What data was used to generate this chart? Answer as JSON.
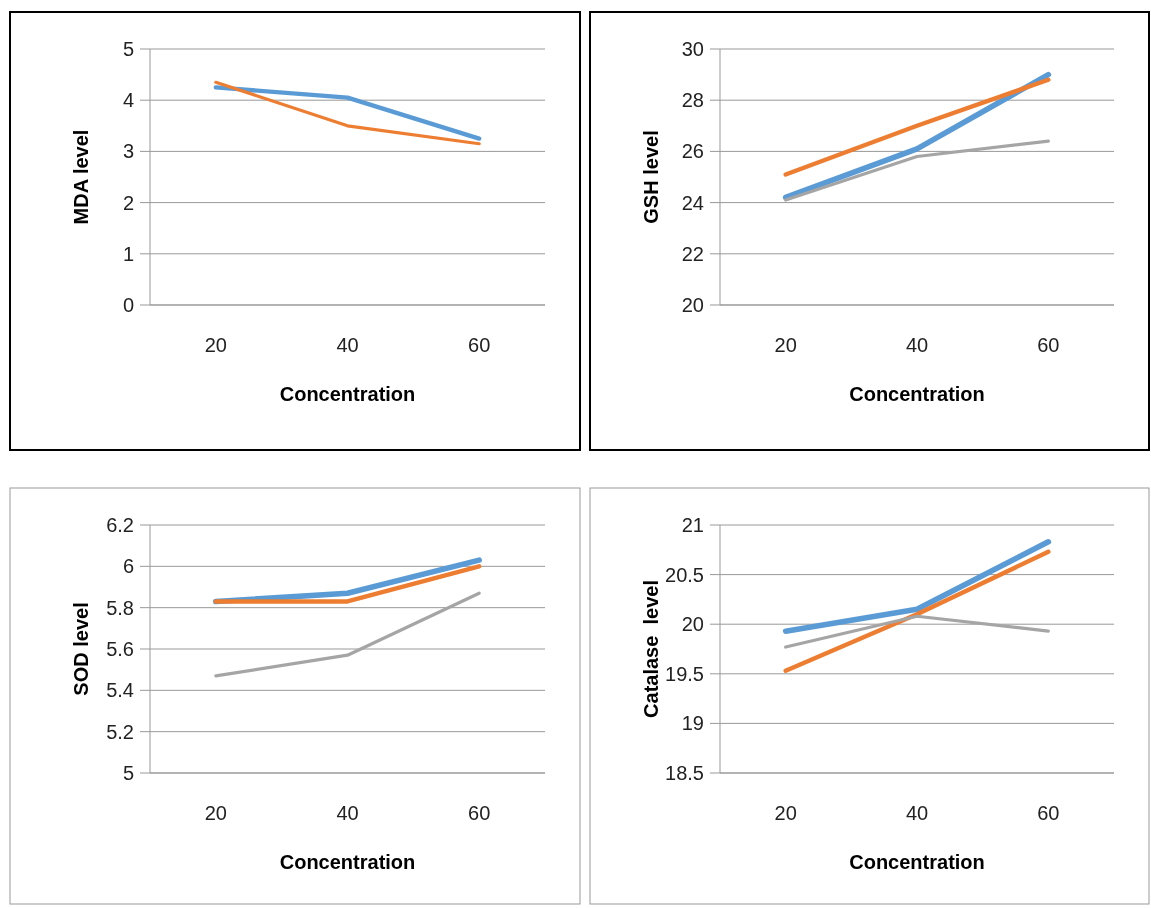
{
  "chart_data": [
    {
      "type": "line",
      "categories": [
        "20",
        "40",
        "60"
      ],
      "xlabel": "Concentration",
      "ylabel": "MDA level",
      "ylim": [
        0,
        5
      ],
      "yticks": [
        0,
        1,
        2,
        3,
        4,
        5
      ],
      "grid": "y",
      "series": [
        {
          "color": "#5b9bd5",
          "values": [
            4.25,
            4.05,
            3.25
          ]
        },
        {
          "color": "#ed7d31",
          "values": [
            4.35,
            3.5,
            3.15
          ]
        }
      ]
    },
    {
      "type": "line",
      "categories": [
        "20",
        "40",
        "60"
      ],
      "xlabel": "Concentration",
      "ylabel": "GSH level",
      "ylim": [
        20,
        30
      ],
      "yticks": [
        20,
        22,
        24,
        26,
        28,
        30
      ],
      "grid": "y",
      "series": [
        {
          "color": "#5b9bd5",
          "values": [
            24.2,
            26.1,
            29.0
          ]
        },
        {
          "color": "#ed7d31",
          "values": [
            25.1,
            27.0,
            28.8
          ]
        },
        {
          "color": "#a5a5a5",
          "values": [
            24.1,
            25.8,
            26.4
          ]
        }
      ]
    },
    {
      "type": "line",
      "categories": [
        "20",
        "40",
        "60"
      ],
      "xlabel": "Concentration",
      "ylabel": "SOD level",
      "ylim": [
        5,
        6.2
      ],
      "yticks": [
        5,
        5.2,
        5.4,
        5.6,
        5.8,
        6,
        6.2
      ],
      "grid": "y",
      "series": [
        {
          "color": "#5b9bd5",
          "values": [
            5.83,
            5.87,
            6.03
          ]
        },
        {
          "color": "#ed7d31",
          "values": [
            5.83,
            5.83,
            6.0
          ]
        },
        {
          "color": "#a5a5a5",
          "values": [
            5.47,
            5.57,
            5.87
          ]
        }
      ]
    },
    {
      "type": "line",
      "categories": [
        "20",
        "40",
        "60"
      ],
      "xlabel": "Concentration",
      "ylabel": "Catalase  level",
      "ylim": [
        18.5,
        21
      ],
      "yticks": [
        18.5,
        19,
        19.5,
        20,
        20.5,
        21
      ],
      "grid": "y",
      "series": [
        {
          "color": "#5b9bd5",
          "values": [
            19.93,
            20.15,
            20.83
          ]
        },
        {
          "color": "#ed7d31",
          "values": [
            19.53,
            20.1,
            20.73
          ]
        },
        {
          "color": "#a5a5a5",
          "values": [
            19.77,
            20.08,
            19.93
          ]
        }
      ]
    }
  ]
}
